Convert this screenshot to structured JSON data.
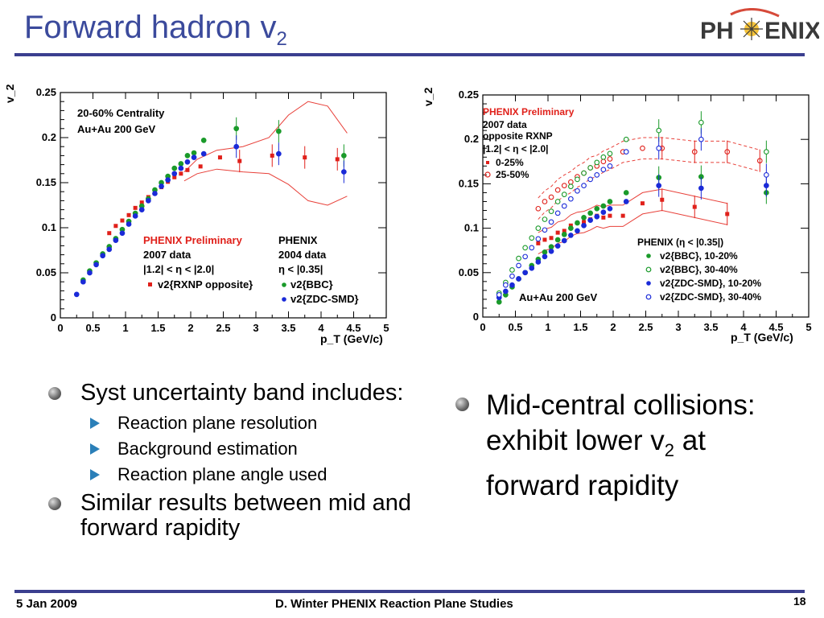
{
  "slide": {
    "title": "Forward hadron v",
    "title_sub": "2",
    "logo_text_left": "PH",
    "logo_text_right": "ENIX",
    "footer_left": "5 Jan 2009",
    "footer_center": "D. Winter PHENIX Reaction Plane Studies",
    "page_number": "18"
  },
  "bullets_left": [
    {
      "text": "Syst uncertainty band includes:",
      "subs": [
        "Reaction plane resolution",
        "Background estimation",
        "Reaction plane angle used"
      ]
    },
    {
      "text": "Similar results between mid and forward rapidity",
      "subs": []
    }
  ],
  "bullet_right": {
    "pre": "Mid-central collisions: exhibit lower v",
    "sub": "2",
    "post": " at forward rapidity"
  },
  "colors": {
    "title": "#3b4a9c",
    "rule": "#3b3f8f",
    "red": "#e0201a",
    "green": "#1a9a2a",
    "blue": "#1a2ad8",
    "band": "#e8413a"
  },
  "chart_data": [
    {
      "type": "scatter",
      "xlabel": "p_T (GeV/c)",
      "ylabel": "v_2",
      "xlim": [
        0,
        5
      ],
      "ylim": [
        0,
        0.25
      ],
      "xticks": [
        "0",
        "0.5",
        "1",
        "1.5",
        "2",
        "2.5",
        "3",
        "3.5",
        "4",
        "4.5",
        "5"
      ],
      "yticks": [
        "0",
        "0.05",
        "0.1",
        "0.15",
        "0.2",
        "0.25"
      ],
      "annotations": {
        "line1": "20-60% Centrality",
        "line2": "Au+Au 200 GeV"
      },
      "legend": {
        "left_title": "PHENIX Preliminary",
        "left_lines": [
          "2007 data",
          "|1.2| < η < |2.0|"
        ],
        "right_title": "PHENIX",
        "right_lines": [
          "2004 data",
          "η < |0.35|"
        ]
      },
      "series": [
        {
          "name": "v2{RXNP opposite}",
          "marker": "square",
          "color": "#e0201a",
          "x": [
            0.75,
            0.85,
            0.95,
            1.05,
            1.15,
            1.25,
            1.35,
            1.45,
            1.55,
            1.65,
            1.75,
            1.85,
            1.95,
            2.15,
            2.45,
            2.75,
            3.25,
            3.75,
            4.25
          ],
          "y": [
            0.094,
            0.102,
            0.108,
            0.114,
            0.122,
            0.128,
            0.134,
            0.138,
            0.145,
            0.151,
            0.156,
            0.16,
            0.164,
            0.168,
            0.178,
            0.174,
            0.18,
            0.178,
            0.176
          ]
        },
        {
          "name": "v2{BBC}",
          "marker": "circle",
          "color": "#1a9a2a",
          "x": [
            0.35,
            0.45,
            0.55,
            0.65,
            0.75,
            0.85,
            0.95,
            1.05,
            1.15,
            1.25,
            1.35,
            1.45,
            1.55,
            1.65,
            1.75,
            1.85,
            1.95,
            2.05,
            2.2,
            2.7,
            3.35,
            4.35
          ],
          "y": [
            0.042,
            0.052,
            0.061,
            0.071,
            0.079,
            0.088,
            0.098,
            0.107,
            0.116,
            0.124,
            0.132,
            0.142,
            0.15,
            0.157,
            0.166,
            0.171,
            0.18,
            0.183,
            0.197,
            0.21,
            0.207,
            0.18
          ]
        },
        {
          "name": "v2{ZDC-SMD}",
          "marker": "circle",
          "color": "#1a2ad8",
          "x": [
            0.25,
            0.35,
            0.45,
            0.55,
            0.65,
            0.75,
            0.85,
            0.95,
            1.05,
            1.15,
            1.25,
            1.35,
            1.45,
            1.55,
            1.65,
            1.75,
            1.85,
            1.95,
            2.05,
            2.2,
            2.7,
            3.35,
            4.35
          ],
          "y": [
            0.026,
            0.04,
            0.05,
            0.059,
            0.069,
            0.076,
            0.086,
            0.094,
            0.104,
            0.113,
            0.12,
            0.13,
            0.138,
            0.146,
            0.153,
            0.16,
            0.166,
            0.173,
            0.178,
            0.182,
            0.19,
            0.182,
            0.162
          ]
        }
      ],
      "band_upper": [
        [
          1.9,
          0.162
        ],
        [
          2.1,
          0.176
        ],
        [
          2.4,
          0.186
        ],
        [
          2.8,
          0.19
        ],
        [
          3.2,
          0.2
        ],
        [
          3.5,
          0.225
        ],
        [
          3.8,
          0.24
        ],
        [
          4.1,
          0.235
        ],
        [
          4.4,
          0.205
        ]
      ],
      "band_lower": [
        [
          1.9,
          0.152
        ],
        [
          2.1,
          0.16
        ],
        [
          2.4,
          0.165
        ],
        [
          2.8,
          0.162
        ],
        [
          3.2,
          0.16
        ],
        [
          3.5,
          0.148
        ],
        [
          3.8,
          0.13
        ],
        [
          4.1,
          0.125
        ],
        [
          4.4,
          0.135
        ]
      ]
    },
    {
      "type": "scatter",
      "xlabel": "p_T (GeV/c)",
      "ylabel": "v_2",
      "xlim": [
        0,
        5
      ],
      "ylim": [
        0,
        0.25
      ],
      "xticks": [
        "0",
        "0.5",
        "1",
        "1.5",
        "2",
        "2.5",
        "3",
        "3.5",
        "4",
        "4.5",
        "5"
      ],
      "yticks": [
        "0",
        "0.05",
        "0.1",
        "0.15",
        "0.2",
        "0.25"
      ],
      "annotations": {
        "bottom": "Au+Au 200 GeV"
      },
      "legend_top": {
        "title": "PHENIX Preliminary",
        "lines": [
          "2007 data",
          "opposite RXNP",
          "|1.2| < η < |2.0|"
        ],
        "entries": [
          "0-25%",
          "25-50%"
        ]
      },
      "legend_bottom": {
        "title": "PHENIX (η < |0.35|)",
        "entries": [
          "v2{BBC}, 10-20%",
          "v2{BBC}, 30-40%",
          "v2{ZDC-SMD}, 10-20%",
          "v2{ZDC-SMD}, 30-40%"
        ]
      },
      "series": [
        {
          "name": "0-25%",
          "marker": "square",
          "filled": true,
          "color": "#e0201a",
          "x": [
            0.85,
            0.95,
            1.05,
            1.15,
            1.25,
            1.35,
            1.45,
            1.55,
            1.65,
            1.75,
            1.85,
            1.95,
            2.15,
            2.45,
            2.75,
            3.25,
            3.75
          ],
          "y": [
            0.083,
            0.087,
            0.089,
            0.095,
            0.097,
            0.103,
            0.106,
            0.107,
            0.11,
            0.114,
            0.112,
            0.114,
            0.114,
            0.128,
            0.132,
            0.124,
            0.116
          ]
        },
        {
          "name": "25-50%",
          "marker": "diamond",
          "filled": false,
          "color": "#e0201a",
          "x": [
            0.85,
            0.95,
            1.05,
            1.15,
            1.25,
            1.35,
            1.45,
            1.55,
            1.65,
            1.75,
            1.85,
            1.95,
            2.15,
            2.45,
            2.75,
            3.25,
            3.75,
            4.25
          ],
          "y": [
            0.122,
            0.13,
            0.135,
            0.143,
            0.148,
            0.152,
            0.158,
            0.162,
            0.168,
            0.17,
            0.175,
            0.178,
            0.186,
            0.19,
            0.19,
            0.186,
            0.186,
            0.176
          ]
        },
        {
          "name": "v2{BBC}, 10-20%",
          "marker": "circle",
          "filled": true,
          "color": "#1a9a2a",
          "x": [
            0.25,
            0.35,
            0.45,
            0.55,
            0.65,
            0.75,
            0.85,
            0.95,
            1.05,
            1.15,
            1.25,
            1.35,
            1.45,
            1.55,
            1.65,
            1.75,
            1.85,
            1.95,
            2.2,
            2.7,
            3.35,
            4.35
          ],
          "y": [
            0.017,
            0.025,
            0.034,
            0.043,
            0.05,
            0.058,
            0.065,
            0.073,
            0.079,
            0.087,
            0.093,
            0.1,
            0.106,
            0.112,
            0.117,
            0.122,
            0.125,
            0.13,
            0.14,
            0.157,
            0.158,
            0.14
          ]
        },
        {
          "name": "v2{BBC}, 30-40%",
          "marker": "circle",
          "filled": false,
          "color": "#1a9a2a",
          "x": [
            0.25,
            0.35,
            0.45,
            0.55,
            0.65,
            0.75,
            0.85,
            0.95,
            1.05,
            1.15,
            1.25,
            1.35,
            1.45,
            1.55,
            1.65,
            1.75,
            1.85,
            1.95,
            2.2,
            2.7,
            3.35,
            4.35
          ],
          "y": [
            0.027,
            0.039,
            0.053,
            0.066,
            0.078,
            0.089,
            0.1,
            0.11,
            0.119,
            0.13,
            0.138,
            0.147,
            0.155,
            0.162,
            0.168,
            0.174,
            0.18,
            0.184,
            0.2,
            0.21,
            0.219,
            0.186
          ]
        },
        {
          "name": "v2{ZDC-SMD}, 10-20%",
          "marker": "circle",
          "filled": true,
          "color": "#1a2ad8",
          "x": [
            0.25,
            0.35,
            0.45,
            0.55,
            0.65,
            0.75,
            0.85,
            0.95,
            1.05,
            1.15,
            1.25,
            1.35,
            1.45,
            1.55,
            1.65,
            1.75,
            1.85,
            1.95,
            2.2,
            2.7,
            3.35,
            4.35
          ],
          "y": [
            0.022,
            0.029,
            0.036,
            0.043,
            0.05,
            0.055,
            0.062,
            0.068,
            0.074,
            0.08,
            0.086,
            0.092,
            0.097,
            0.103,
            0.109,
            0.113,
            0.118,
            0.122,
            0.13,
            0.148,
            0.145,
            0.148
          ]
        },
        {
          "name": "v2{ZDC-SMD}, 30-40%",
          "marker": "circle",
          "filled": false,
          "color": "#1a2ad8",
          "x": [
            0.25,
            0.35,
            0.45,
            0.55,
            0.65,
            0.75,
            0.85,
            0.95,
            1.05,
            1.15,
            1.25,
            1.35,
            1.45,
            1.55,
            1.65,
            1.75,
            1.85,
            1.95,
            2.2,
            2.7,
            3.35,
            4.35
          ],
          "y": [
            0.025,
            0.036,
            0.046,
            0.058,
            0.068,
            0.078,
            0.088,
            0.098,
            0.107,
            0.117,
            0.125,
            0.133,
            0.142,
            0.148,
            0.155,
            0.16,
            0.166,
            0.17,
            0.186,
            0.19,
            0.2,
            0.16
          ]
        }
      ]
    }
  ]
}
